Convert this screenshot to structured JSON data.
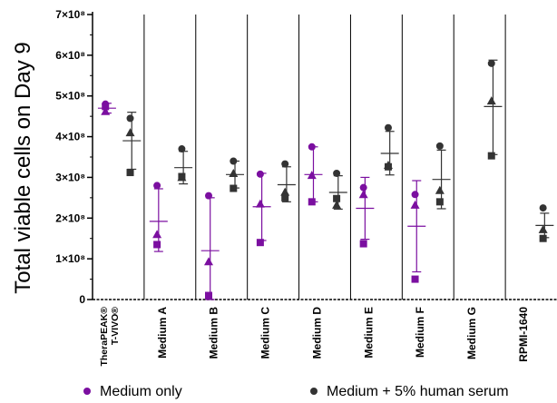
{
  "chart_data": {
    "type": "scatter",
    "ylabel": "Total viable cells on Day 9",
    "ylim": [
      0,
      700000000
    ],
    "y_ticks": [
      {
        "value": 0,
        "label": "0"
      },
      {
        "value": 100000000,
        "label": "1×10⁸"
      },
      {
        "value": 200000000,
        "label": "2×10⁸"
      },
      {
        "value": 300000000,
        "label": "3×10⁸"
      },
      {
        "value": 400000000,
        "label": "4×10⁸"
      },
      {
        "value": 500000000,
        "label": "5×10⁸"
      },
      {
        "value": 600000000,
        "label": "6×10⁸"
      },
      {
        "value": 700000000,
        "label": "7×10⁸"
      }
    ],
    "categories": [
      {
        "line1": "TheraPEAK®",
        "line2": "T-VIVO®"
      },
      {
        "line1": "Medium A"
      },
      {
        "line1": "Medium B"
      },
      {
        "line1": "Medium C"
      },
      {
        "line1": "Medium D"
      },
      {
        "line1": "Medium E"
      },
      {
        "line1": "Medium F"
      },
      {
        "line1": "Medium G"
      },
      {
        "line1": "RPMI-1640"
      }
    ],
    "series": [
      {
        "name": "Medium only",
        "color": "#7b0fa0",
        "groups": [
          {
            "points": [
              480000000,
              462000000,
              474000000
            ],
            "mean": 470000000,
            "sd": [
              458000000,
              482000000
            ]
          },
          {
            "points": [
              280000000,
              160000000,
              135000000
            ],
            "mean": 192000000,
            "sd": [
              118000000,
              272000000
            ]
          },
          {
            "points": [
              255000000,
              93000000,
              10000000
            ],
            "mean": 120000000,
            "sd": [
              0,
              250000000
            ]
          },
          {
            "points": [
              308000000,
              235000000,
              140000000
            ],
            "mean": 228000000,
            "sd": [
              145000000,
              310000000
            ]
          },
          {
            "points": [
              375000000,
              305000000,
              240000000
            ],
            "mean": 307000000,
            "sd": [
              240000000,
              375000000
            ]
          },
          {
            "points": [
              275000000,
              258000000,
              137000000
            ],
            "mean": 224000000,
            "sd": [
              148000000,
              300000000
            ]
          },
          {
            "points": [
              258000000,
              232000000,
              50000000
            ],
            "mean": 180000000,
            "sd": [
              68000000,
              292000000
            ]
          }
        ]
      },
      {
        "name": "Medium + 5% human serum",
        "color": "#333333",
        "groups": [
          {
            "points": [
              445000000,
              410000000,
              312000000
            ],
            "mean": 390000000,
            "sd": [
              320000000,
              460000000
            ]
          },
          {
            "points": [
              370000000,
              300000000,
              302000000
            ],
            "mean": 324000000,
            "sd": [
              284000000,
              364000000
            ]
          },
          {
            "points": [
              340000000,
              310000000,
              273000000
            ],
            "mean": 307000000,
            "sd": [
              274000000,
              340000000
            ]
          },
          {
            "points": [
              333000000,
              264000000,
              250000000
            ],
            "mean": 282000000,
            "sd": [
              240000000,
              326000000
            ]
          },
          {
            "points": [
              310000000,
              232000000,
              248000000
            ],
            "mean": 263000000,
            "sd": [
              222000000,
              304000000
            ]
          },
          {
            "points": [
              422000000,
              330000000,
              326000000
            ],
            "mean": 359000000,
            "sd": [
              306000000,
              413000000
            ]
          },
          {
            "points": [
              377000000,
              268000000,
              240000000
            ],
            "mean": 295000000,
            "sd": [
              223000000,
              367000000
            ]
          },
          {
            "points": [
              580000000,
              488000000,
              353000000
            ],
            "mean": 474000000,
            "sd": [
              356000000,
              588000000
            ]
          },
          {
            "points": [
              225000000,
              172000000,
              150000000
            ],
            "mean": 182000000,
            "sd": [
              152000000,
              212000000
            ]
          }
        ]
      }
    ],
    "legend": [
      {
        "label": "Medium only",
        "color": "#7b0fa0"
      },
      {
        "label": "Medium + 5% human serum",
        "color": "#333333"
      }
    ]
  }
}
